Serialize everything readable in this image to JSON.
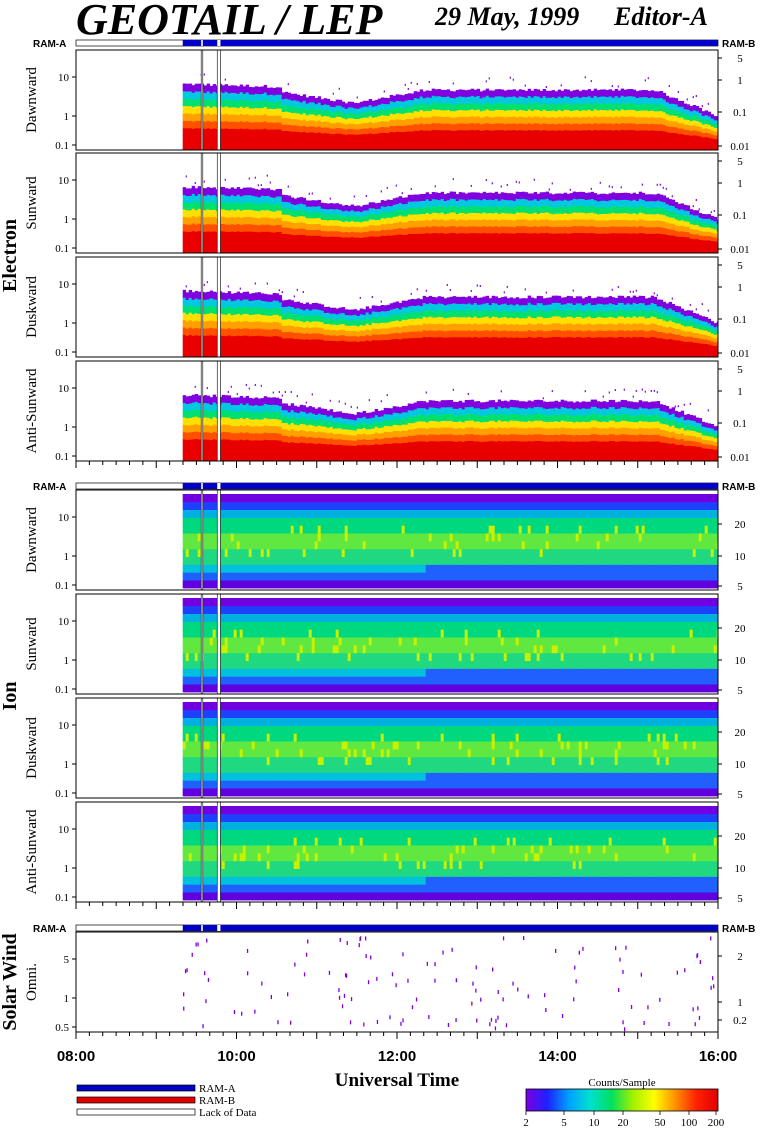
{
  "header": {
    "title": "GEOTAIL / LEP",
    "date": "29 May, 1999",
    "editor": "Editor-A"
  },
  "groups": [
    {
      "name": "Electron",
      "ram_a_label": "RAM-A",
      "ram_b_label": "RAM-B",
      "left_ticks": [
        "0.1",
        "1",
        "10"
      ],
      "right_ticks": [
        "0.01",
        "0.1",
        "1",
        "5"
      ],
      "panels": [
        "Dawnward",
        "Sunward",
        "Duskward",
        "Anti-Sunward"
      ]
    },
    {
      "name": "Ion",
      "ram_a_label": "RAM-A",
      "ram_b_label": "RAM-B",
      "left_ticks": [
        "0.1",
        "1",
        "10"
      ],
      "right_ticks": [
        "5",
        "10",
        "20"
      ],
      "panels": [
        "Dawnward",
        "Sunward",
        "Duskward",
        "Anti-Sunward"
      ]
    },
    {
      "name": "Solar Wind",
      "ram_a_label": "RAM-A",
      "ram_b_label": "RAM-B",
      "left_ticks": [
        "0.5",
        "1",
        "5"
      ],
      "right_ticks": [
        "0.2",
        "1",
        "2"
      ],
      "panels": [
        "Omni."
      ]
    }
  ],
  "chart_data": {
    "type": "heatmap",
    "xlabel": "Universal Time",
    "x_ticks": [
      "08:00",
      "10:00",
      "12:00",
      "14:00",
      "16:00"
    ],
    "xlim_hours": [
      8,
      16
    ],
    "data_start_hour": 9.33,
    "data_gaps_hours": [
      [
        9.56,
        9.58
      ],
      [
        9.76,
        9.8
      ]
    ],
    "colorbar": {
      "title": "Counts/Sample",
      "ticks": [
        "2",
        "5",
        "10",
        "20",
        "50",
        "100",
        "200"
      ],
      "colors": [
        "#7a00e0",
        "#2020ff",
        "#00a0ff",
        "#00e0d0",
        "#00e060",
        "#a0f000",
        "#ffff00",
        "#ff9000",
        "#ff2000",
        "#e00000"
      ]
    },
    "legend": [
      {
        "label": "RAM-A",
        "color": "#0000c8"
      },
      {
        "label": "RAM-B",
        "color": "#e00000"
      },
      {
        "label": "Lack of Data",
        "color": "#ffffff"
      }
    ]
  }
}
